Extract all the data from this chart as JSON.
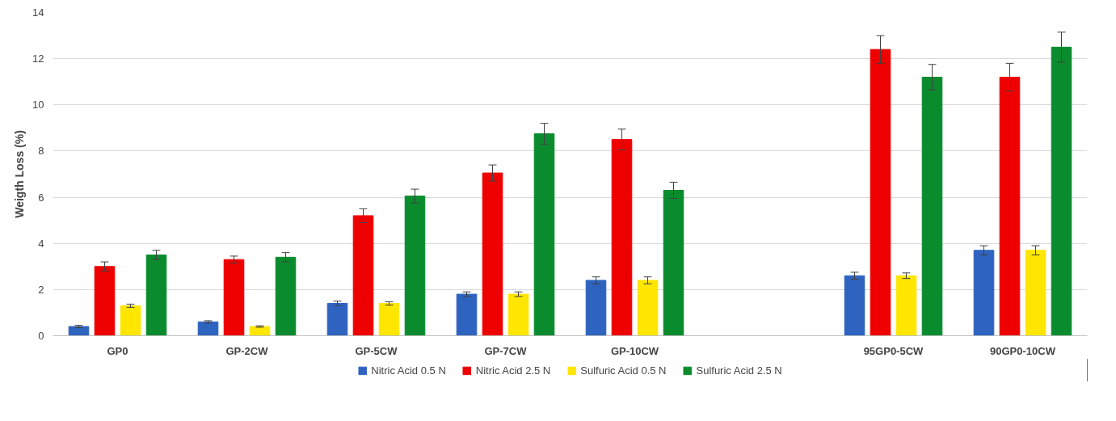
{
  "chart_data": {
    "type": "bar",
    "ylabel": "Weigth Loss (%)",
    "categories": [
      "GP0",
      "GP-2CW",
      "GP-5CW",
      "GP-7CW",
      "GP-10CW",
      null,
      "95GP0-5CW",
      "90GP0-10CW"
    ],
    "series": [
      {
        "name": "Nitric Acid 0.5 N",
        "color": "#2e63c0",
        "values": [
          0.4,
          0.6,
          1.4,
          1.8,
          2.4,
          null,
          2.6,
          3.7
        ],
        "errors": [
          0.05,
          0.05,
          0.1,
          0.1,
          0.15,
          null,
          0.15,
          0.2
        ]
      },
      {
        "name": "Nitric Acid 2.5 N",
        "color": "#ee0000",
        "values": [
          3.0,
          3.3,
          5.2,
          7.05,
          8.5,
          null,
          12.4,
          11.2
        ],
        "errors": [
          0.2,
          0.15,
          0.3,
          0.35,
          0.45,
          null,
          0.6,
          0.6
        ]
      },
      {
        "name": "Sulfuric Acid 0.5 N",
        "color": "#ffe600",
        "values": [
          1.3,
          0.4,
          1.4,
          1.8,
          2.4,
          null,
          2.6,
          3.7
        ],
        "errors": [
          0.07,
          0.03,
          0.07,
          0.1,
          0.15,
          null,
          0.12,
          0.2
        ]
      },
      {
        "name": "Sulfuric Acid 2.5 N",
        "color": "#0a8c2e",
        "values": [
          3.5,
          3.4,
          6.05,
          8.75,
          6.3,
          null,
          11.2,
          12.5
        ],
        "errors": [
          0.2,
          0.2,
          0.3,
          0.45,
          0.35,
          null,
          0.55,
          0.65
        ]
      }
    ],
    "ylim": [
      0,
      14
    ],
    "yticks": [
      0,
      2,
      4,
      6,
      8,
      10,
      12,
      14
    ],
    "grid": "y",
    "legend": "bottom"
  }
}
